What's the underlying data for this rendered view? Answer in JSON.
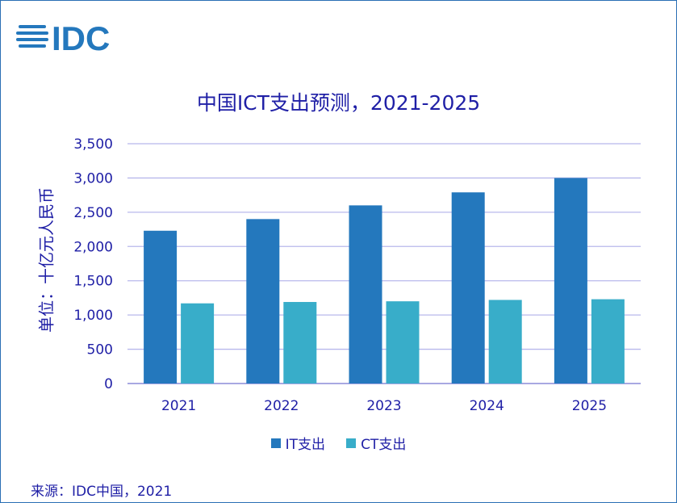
{
  "logo_text": "IDC",
  "colors": {
    "it": "#2478bd",
    "ct": "#38adc9",
    "text": "#1f1fa6",
    "grid": "#b8b8ec",
    "axis": "#8c8cd8"
  },
  "chart_data": {
    "type": "bar",
    "title": "中国ICT支出预测，2021-2025",
    "ylabel": "单位：十亿元人民币",
    "xlabel": "",
    "categories": [
      "2021",
      "2022",
      "2023",
      "2024",
      "2025"
    ],
    "series": [
      {
        "name": "IT支出",
        "values": [
          2230,
          2400,
          2600,
          2790,
          3000
        ]
      },
      {
        "name": "CT支出",
        "values": [
          1170,
          1190,
          1200,
          1220,
          1230
        ]
      }
    ],
    "ylim": [
      0,
      3500
    ],
    "yticks": [
      "0",
      "500",
      "1,000",
      "1,500",
      "2,000",
      "2,500",
      "3,000",
      "3,500"
    ],
    "grid": true,
    "legend": "bottom"
  },
  "source": "来源：IDC中国，2021"
}
